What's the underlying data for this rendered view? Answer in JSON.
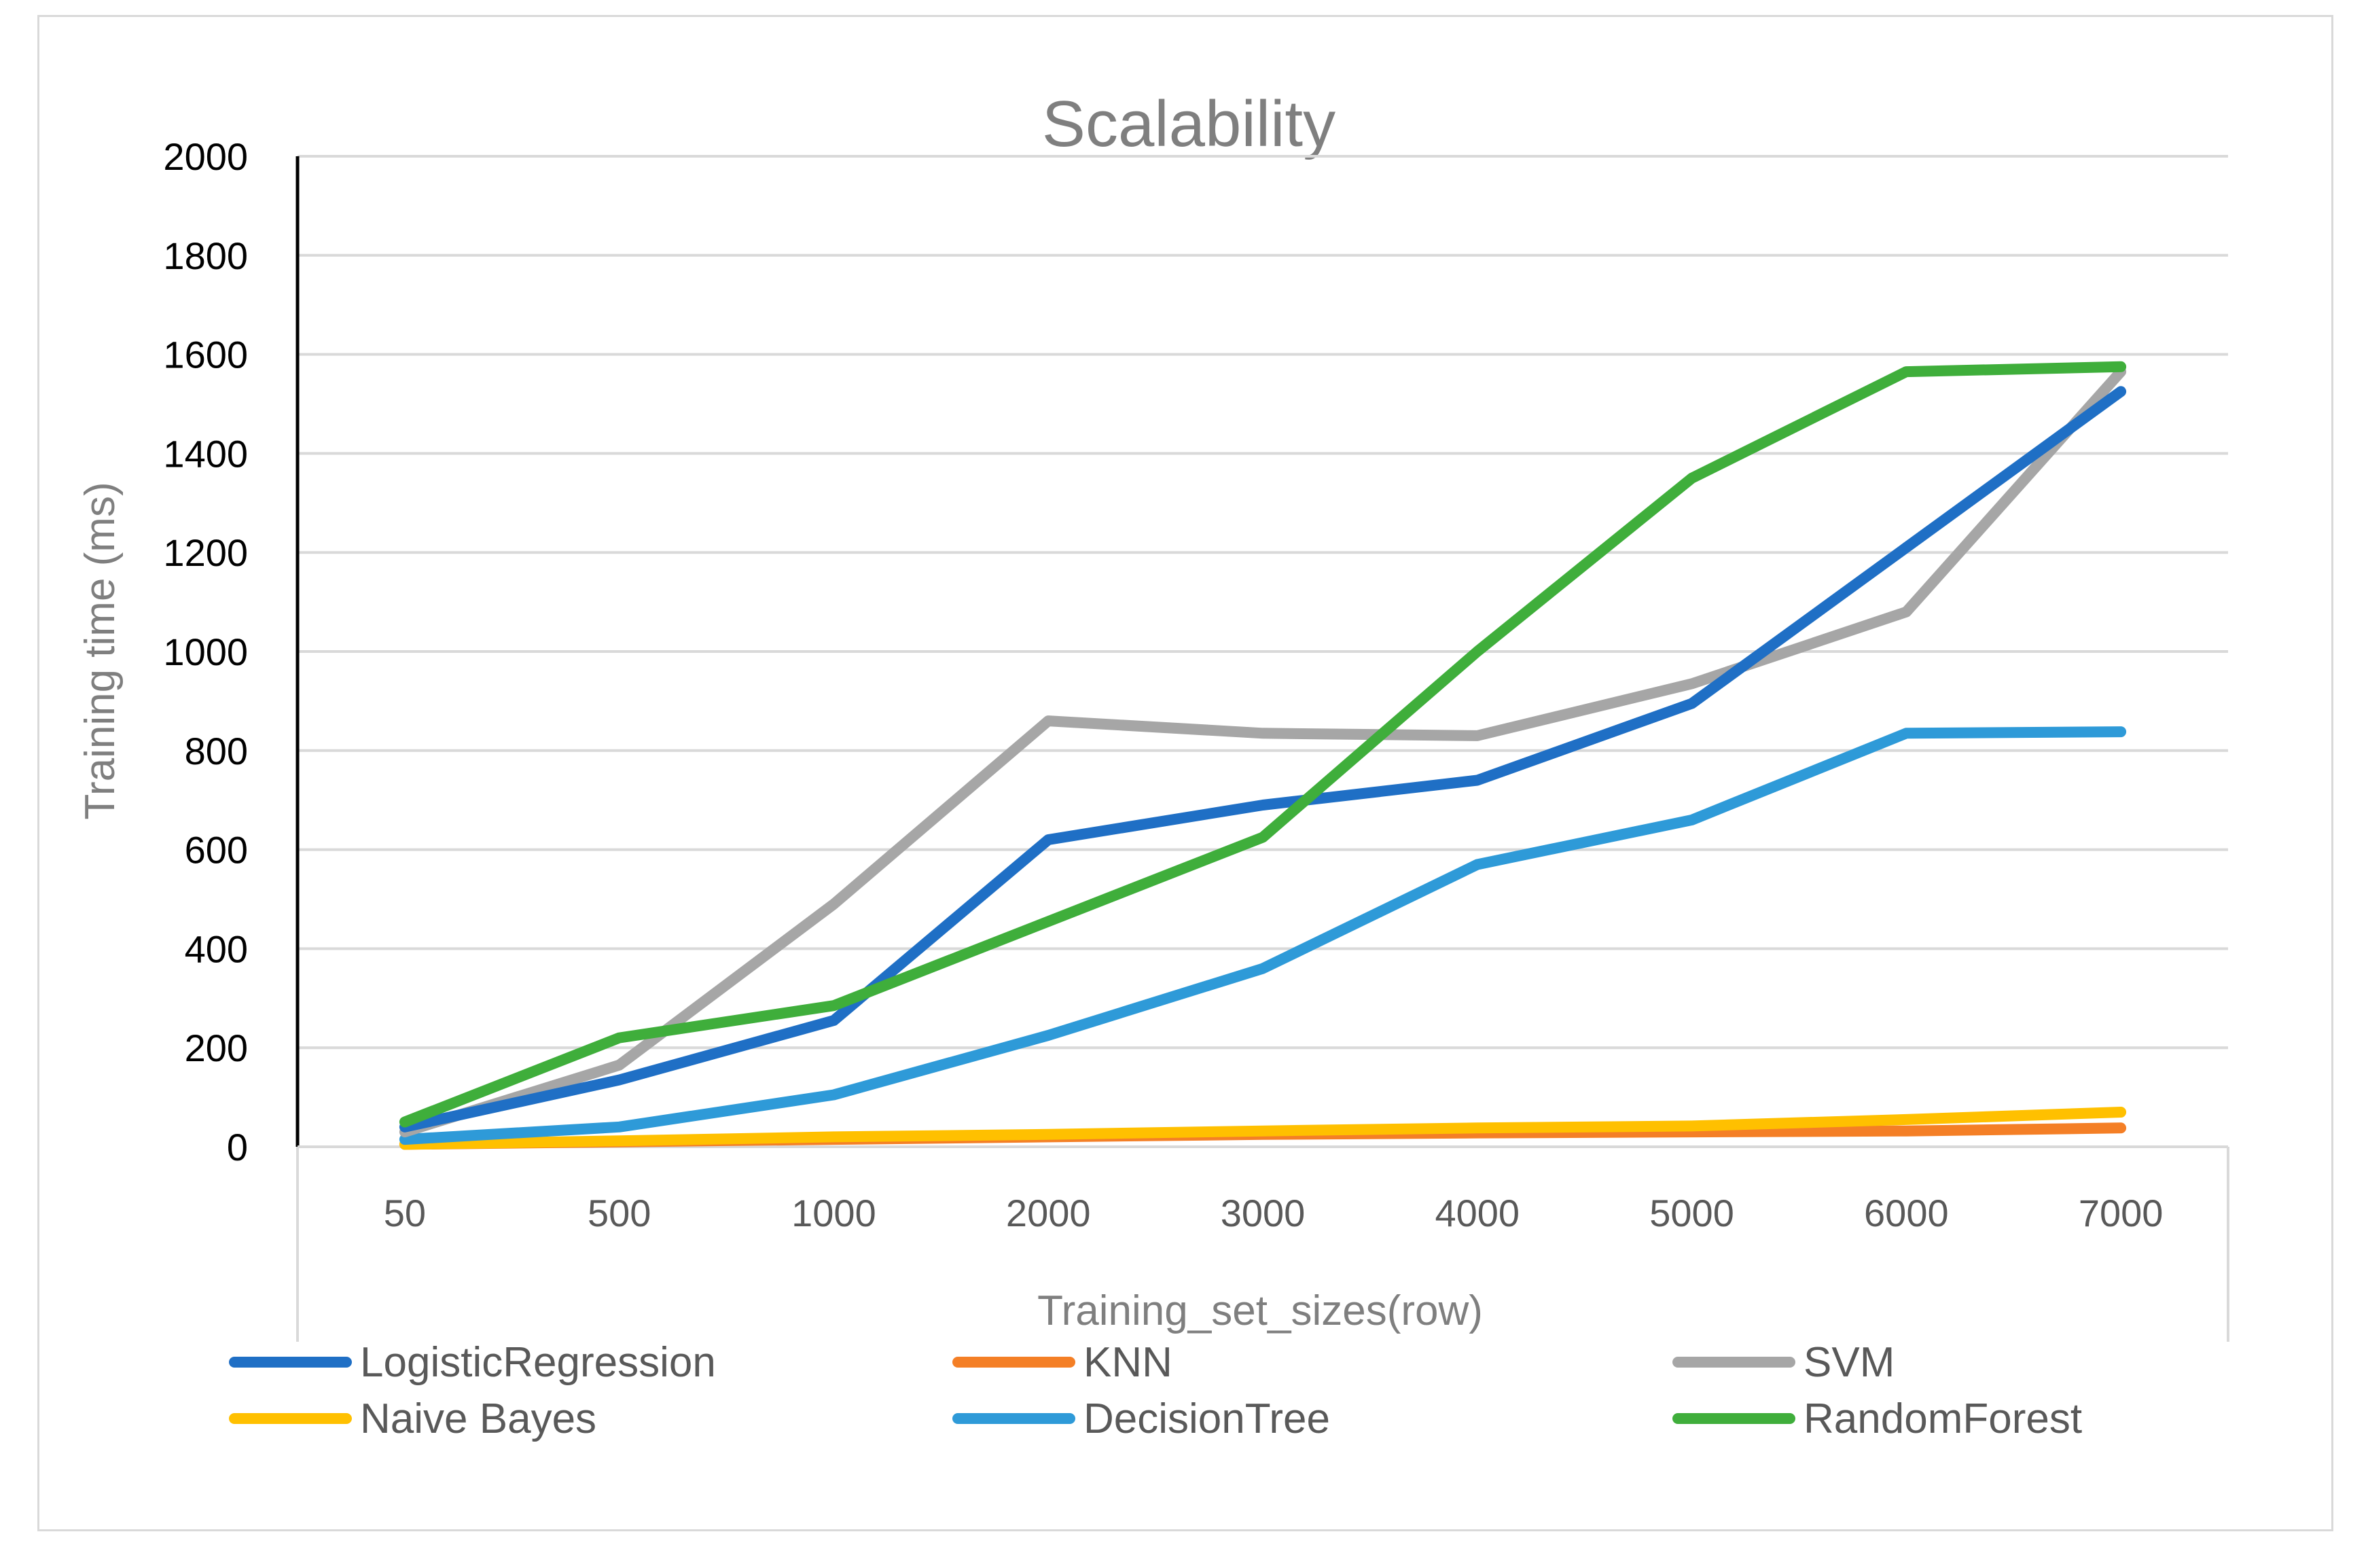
{
  "chart_data": {
    "type": "line",
    "title": "Scalability",
    "xlabel": "Training_set_sizes(row)",
    "ylabel": "Training time (ms)",
    "categories": [
      "50",
      "500",
      "1000",
      "2000",
      "3000",
      "4000",
      "5000",
      "6000",
      "7000"
    ],
    "ylim": [
      0,
      2000
    ],
    "yticks": [
      0,
      200,
      400,
      600,
      800,
      1000,
      1200,
      1400,
      1600,
      1800,
      2000
    ],
    "grid": true,
    "legend_position": "bottom",
    "series": [
      {
        "name": "LogisticRegression",
        "color": "#1f6fc5",
        "values": [
          40,
          135,
          255,
          620,
          690,
          740,
          895,
          1210,
          1525
        ]
      },
      {
        "name": "KNN",
        "color": "#f47f26",
        "values": [
          5,
          10,
          15,
          20,
          25,
          28,
          30,
          32,
          38
        ]
      },
      {
        "name": "SVM",
        "color": "#a6a6a6",
        "values": [
          30,
          165,
          490,
          860,
          835,
          830,
          935,
          1080,
          1565
        ]
      },
      {
        "name": "Naive Bayes",
        "color": "#ffc000",
        "values": [
          5,
          12,
          20,
          25,
          32,
          38,
          42,
          55,
          70
        ]
      },
      {
        "name": "DecisionTree",
        "color": "#2e9ad8",
        "values": [
          15,
          40,
          105,
          225,
          360,
          570,
          660,
          835,
          838
        ]
      },
      {
        "name": "RandomForest",
        "color": "#3fae3b",
        "values": [
          50,
          220,
          285,
          455,
          625,
          1000,
          1350,
          1565,
          1575
        ]
      }
    ]
  }
}
